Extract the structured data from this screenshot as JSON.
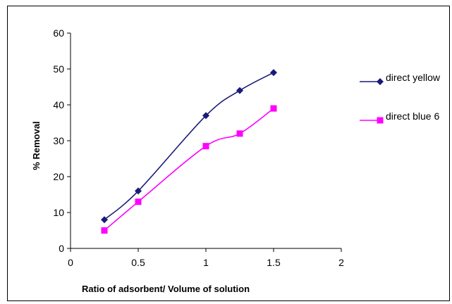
{
  "chart_data": {
    "type": "line",
    "title": "",
    "xlabel": "Ratio of adsorbent/ Volume of solution",
    "ylabel": "% Removal",
    "xlim": [
      0,
      2
    ],
    "ylim": [
      0,
      60
    ],
    "xticks": [
      0,
      0.5,
      1,
      1.5,
      2
    ],
    "yticks": [
      0,
      10,
      20,
      30,
      40,
      50,
      60
    ],
    "xtick_labels": [
      "0",
      "0.5",
      "1",
      "1.5",
      "2"
    ],
    "ytick_labels": [
      "0",
      "10",
      "20",
      "30",
      "40",
      "50",
      "60"
    ],
    "grid": false,
    "legend_position": "right",
    "series": [
      {
        "name": "direct yellow",
        "color": "#1a1a7a",
        "marker": "diamond",
        "x": [
          0.25,
          0.5,
          1,
          1.25,
          1.5
        ],
        "y": [
          8,
          16,
          37,
          44,
          49
        ]
      },
      {
        "name": "direct blue 6",
        "color": "#ff00ff",
        "marker": "square",
        "x": [
          0.25,
          0.5,
          1,
          1.25,
          1.5
        ],
        "y": [
          5,
          13,
          28.5,
          32,
          39
        ]
      }
    ]
  }
}
